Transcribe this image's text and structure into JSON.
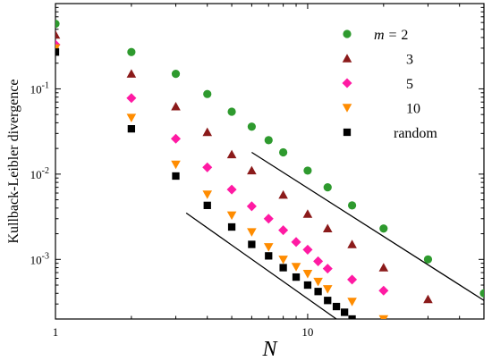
{
  "chart_data": {
    "type": "scatter",
    "xlabel": "N",
    "ylabel": "Kullback-Leibler divergence",
    "x_scale": "log",
    "y_scale": "log",
    "xlim": [
      1,
      50
    ],
    "ylim": [
      0.0002,
      1
    ],
    "x_ticks": [
      {
        "value": 1,
        "label": "1"
      },
      {
        "value": 10,
        "label": "10"
      }
    ],
    "y_ticks": [
      {
        "value": 0.001,
        "base": "10",
        "exp": "-3"
      },
      {
        "value": 0.01,
        "base": "10",
        "exp": "-2"
      },
      {
        "value": 0.1,
        "base": "10",
        "exp": "-1"
      }
    ],
    "legend_title_prefix": "m = ",
    "legend_position": "top-right",
    "series": [
      {
        "name": "2",
        "marker": "circle",
        "color": "#2e9a2e",
        "x": [
          1,
          2,
          3,
          4,
          5,
          6,
          7,
          8,
          10,
          12,
          15,
          20,
          30,
          50
        ],
        "y": [
          0.58,
          0.27,
          0.15,
          0.087,
          0.054,
          0.036,
          0.025,
          0.018,
          0.011,
          0.007,
          0.0043,
          0.0023,
          0.001,
          0.0004
        ]
      },
      {
        "name": "3",
        "marker": "triangle-up",
        "color": "#8b1a1a",
        "x": [
          1,
          2,
          3,
          4,
          5,
          6,
          8,
          10,
          12,
          15,
          20,
          30
        ],
        "y": [
          0.43,
          0.15,
          0.062,
          0.031,
          0.017,
          0.011,
          0.0057,
          0.0034,
          0.0023,
          0.0015,
          0.0008,
          0.00034
        ]
      },
      {
        "name": "5",
        "marker": "diamond",
        "color": "#ff1aa3",
        "x": [
          1,
          2,
          3,
          4,
          5,
          6,
          7,
          8,
          9,
          10,
          11,
          12,
          15,
          20
        ],
        "y": [
          0.33,
          0.078,
          0.026,
          0.012,
          0.0066,
          0.0042,
          0.003,
          0.0022,
          0.0016,
          0.0013,
          0.00095,
          0.00078,
          0.00058,
          0.00043
        ]
      },
      {
        "name": "10",
        "marker": "triangle-down",
        "color": "#ff8c00",
        "x": [
          1,
          2,
          3,
          4,
          5,
          6,
          7,
          8,
          9,
          10,
          11,
          12,
          15,
          20
        ],
        "y": [
          0.3,
          0.046,
          0.013,
          0.0058,
          0.0033,
          0.0021,
          0.0014,
          0.001,
          0.00082,
          0.00068,
          0.00055,
          0.00045,
          0.00032,
          0.0002
        ]
      },
      {
        "name": "random",
        "marker": "square",
        "color": "#000000",
        "x": [
          1,
          2,
          3,
          4,
          5,
          6,
          7,
          8,
          9,
          10,
          11,
          12,
          13,
          14,
          15
        ],
        "y": [
          0.27,
          0.034,
          0.0095,
          0.0043,
          0.0024,
          0.0015,
          0.0011,
          0.0008,
          0.00062,
          0.0005,
          0.00042,
          0.00033,
          0.00028,
          0.00024,
          0.0002
        ]
      }
    ],
    "reference_lines": [
      {
        "x": [
          6,
          50
        ],
        "y": [
          0.018,
          0.00033
        ],
        "color": "#000000"
      },
      {
        "x": [
          3.3,
          13
        ],
        "y": [
          0.0035,
          0.0002
        ],
        "color": "#000000"
      }
    ]
  }
}
